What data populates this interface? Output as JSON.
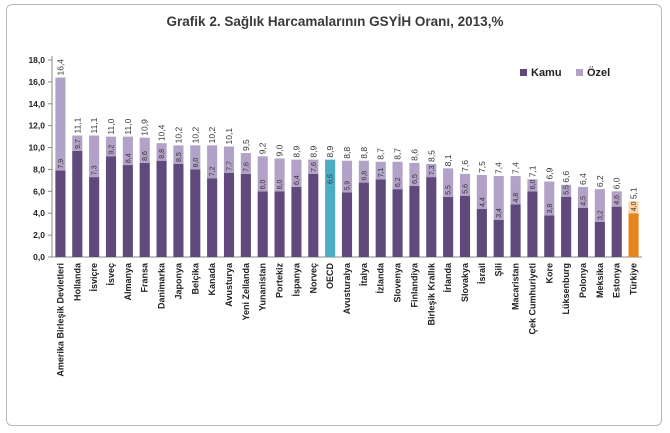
{
  "chart_data": {
    "type": "bar",
    "stacked": true,
    "title": "Grafik 2. Sağlık Harcamalarının GSYİH Oranı, 2013,%",
    "xlabel": "",
    "ylabel": "",
    "ylim": [
      0,
      18
    ],
    "yticks": [
      "0,0",
      "2,0",
      "4,0",
      "6,0",
      "8,0",
      "10,0",
      "12,0",
      "14,0",
      "16,0",
      "18,0"
    ],
    "grid": false,
    "legend_position": "top-right",
    "categories": [
      "Amerika Birleşik Devletleri",
      "Hollanda",
      "İsviçre",
      "İsveç",
      "Almanya",
      "Fransa",
      "Danimarka",
      "Japonya",
      "Belçika",
      "Kanada",
      "Avusturya",
      "Yeni Zellanda",
      "Yunanistan",
      "Portekiz",
      "İspanya",
      "Norveç",
      "OECD",
      "Avusturalya",
      "İtalya",
      "İzlanda",
      "Slovenya",
      "Finlandiya",
      "Birleşik Krallık",
      "İrlanda",
      "Slovakya",
      "İsrail",
      "Şili",
      "Macaristan",
      "Çek Cumhuriyeti",
      "Kore",
      "Lüksenburg",
      "Polonya",
      "Meksika",
      "Estonya",
      "Türkiye"
    ],
    "series": [
      {
        "name": "Kamu",
        "values": [
          7.9,
          9.7,
          7.3,
          9.2,
          8.4,
          8.6,
          8.8,
          8.5,
          8.0,
          7.2,
          7.7,
          7.6,
          6.0,
          6.0,
          6.4,
          7.6,
          6.5,
          5.9,
          6.8,
          7.1,
          6.2,
          6.5,
          7.3,
          5.5,
          5.6,
          4.4,
          3.4,
          4.8,
          6.0,
          3.8,
          5.5,
          4.5,
          3.2,
          4.6,
          4.0
        ],
        "labels": [
          "7,9",
          "9,7",
          "7,3",
          "9,2",
          "8,4",
          "8,6",
          "8,8",
          "8,5",
          "8,0",
          "7,2",
          "7,7",
          "7,6",
          "6,0",
          "6,0",
          "6,4",
          "7,6",
          "6,5",
          "5,9",
          "6,8",
          "7,1",
          "6,2",
          "6,5",
          "7,3",
          "5,5",
          "5,6",
          "4,4",
          "3,4",
          "4,8",
          "6,0",
          "3,8",
          "5,5",
          "4,5",
          "3,2",
          "4,6",
          "4,0"
        ]
      },
      {
        "name": "Özel",
        "totals": [
          16.4,
          11.1,
          11.1,
          11.0,
          11.0,
          10.9,
          10.4,
          10.2,
          10.2,
          10.2,
          10.1,
          9.5,
          9.2,
          9.0,
          8.9,
          8.9,
          8.9,
          8.8,
          8.8,
          8.7,
          8.7,
          8.6,
          8.5,
          8.1,
          7.6,
          7.5,
          7.4,
          7.4,
          7.1,
          6.9,
          6.6,
          6.4,
          6.2,
          6.0,
          5.1
        ],
        "labels": [
          "16,4",
          "11,1",
          "11,1",
          "11,0",
          "11,0",
          "10,9",
          "10,4",
          "10,2",
          "10,2",
          "10,2",
          "10,1",
          "9,5",
          "9,2",
          "9,0",
          "8,9",
          "8,9",
          "8,9",
          "8,8",
          "8,8",
          "8,7",
          "8,7",
          "8,6",
          "8,5",
          "8,1",
          "7,6",
          "7,5",
          "7,4",
          "7,4",
          "7,1",
          "6,9",
          "6,6",
          "6,4",
          "6,2",
          "6,0",
          "5,1"
        ]
      }
    ],
    "highlight": {
      "OECD": "#4bacc6",
      "Türkiye": "#e6851b"
    }
  },
  "colors": {
    "kamu": "#604a7b",
    "ozel": "#b3a2c7",
    "oecd": "#4bacc6",
    "turkiye_kamu": "#e6851b",
    "turkiye_ozel": "#fcd5a6"
  }
}
